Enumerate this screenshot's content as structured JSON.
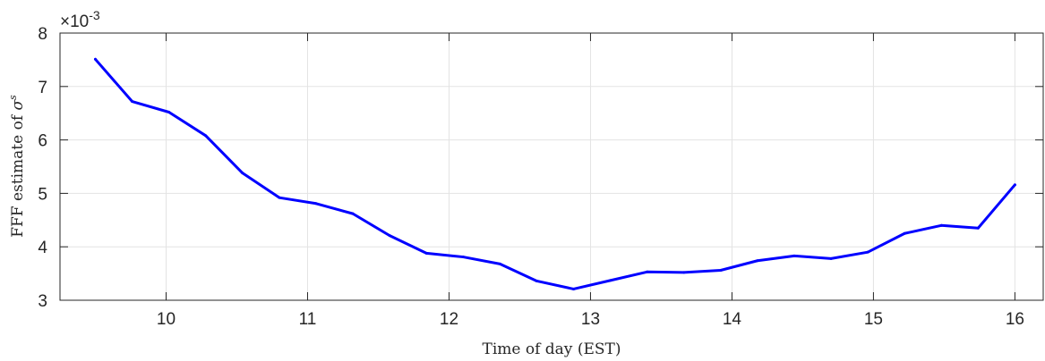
{
  "chart_data": {
    "type": "line",
    "title": "",
    "xlabel": "Time of day (EST)",
    "ylabel": {
      "text": "FFF estimate of ",
      "symbol": "σ",
      "superscript": "s"
    },
    "y_exponent": {
      "prefix": "×10",
      "power": "-3"
    },
    "xlim": [
      9.25,
      16.2
    ],
    "ylim": [
      3,
      8
    ],
    "x_ticks": [
      "10",
      "11",
      "12",
      "13",
      "14",
      "15",
      "16"
    ],
    "y_ticks": [
      "3",
      "4",
      "5",
      "6",
      "7",
      "8"
    ],
    "grid": true,
    "line_color": "#0000ff",
    "series": [
      {
        "x": [
          9.5,
          9.76,
          10.02,
          10.28,
          10.54,
          10.8,
          11.06,
          11.32,
          11.58,
          11.84,
          12.1,
          12.36,
          12.62,
          12.88,
          13.14,
          13.4,
          13.66,
          13.92,
          14.18,
          14.44,
          14.7,
          14.96,
          15.22,
          15.48,
          15.74,
          16.0
        ],
        "y": [
          7.51,
          6.72,
          6.52,
          6.08,
          5.38,
          4.92,
          4.81,
          4.62,
          4.21,
          3.88,
          3.81,
          3.68,
          3.36,
          3.21,
          3.37,
          3.53,
          3.52,
          3.56,
          3.74,
          3.83,
          3.78,
          3.9,
          4.25,
          4.4,
          4.35,
          5.16
        ]
      }
    ]
  }
}
